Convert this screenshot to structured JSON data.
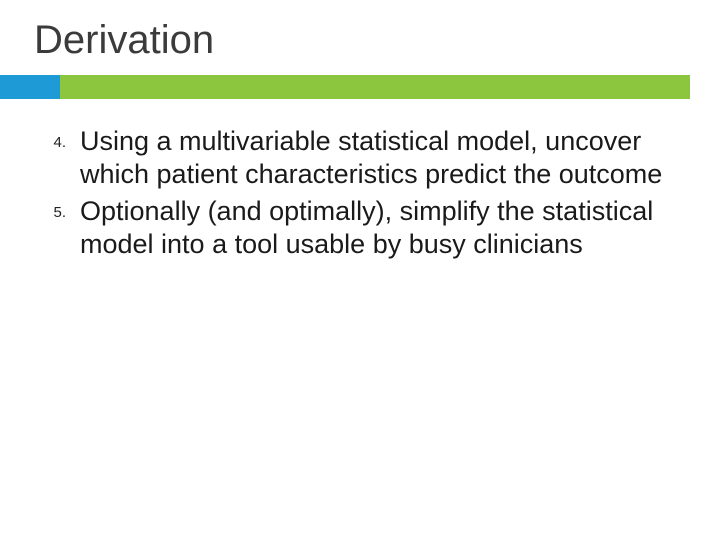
{
  "title": "Derivation",
  "accent": {
    "left_color": "#1e9bd7",
    "right_color": "#8cc63f"
  },
  "items": [
    {
      "num": "4.",
      "text": "Using a multivariable statistical model, uncover which patient characteristics predict the outcome"
    },
    {
      "num": "5.",
      "text": "Optionally (and optimally), simplify the statistical model into a tool usable by busy clinicians"
    }
  ],
  "typography": {
    "title_fontsize": 40,
    "body_fontsize": 27,
    "num_fontsize": 15,
    "title_color": "#3b3b3b",
    "body_color": "#1a1a1a"
  },
  "background_color": "#ffffff"
}
